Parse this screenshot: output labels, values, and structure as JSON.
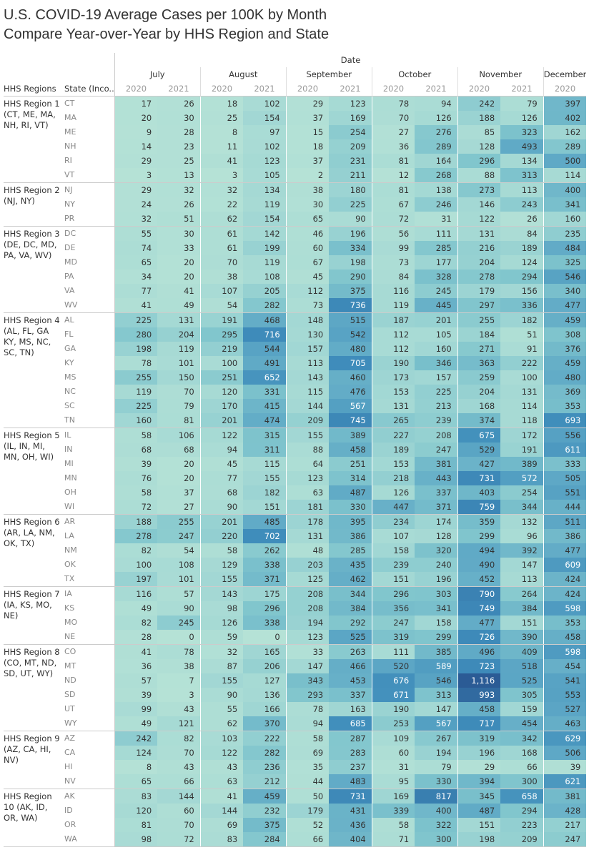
{
  "title_line1": "U.S. COVID-19 Average Cases per 100K by Month",
  "title_line2": "Compare Year-over-Year by HHS Region and State",
  "chart_data": {
    "type": "table",
    "column_group_label": "Date",
    "row_headers": [
      "HHS Regions",
      "State (Inco.."
    ],
    "months": [
      "July",
      "August",
      "September",
      "October",
      "November",
      "December"
    ],
    "columns": [
      [
        "July",
        "2020"
      ],
      [
        "July",
        "2021"
      ],
      [
        "August",
        "2020"
      ],
      [
        "August",
        "2021"
      ],
      [
        "September",
        "2020"
      ],
      [
        "September",
        "2021"
      ],
      [
        "October",
        "2020"
      ],
      [
        "October",
        "2021"
      ],
      [
        "November",
        "2020"
      ],
      [
        "November",
        "2021"
      ],
      [
        "December",
        "2020"
      ]
    ],
    "color_scale": [
      "#b5e2d6",
      "#a3d8d4",
      "#80c5cd",
      "#5fa9c6",
      "#3f8dbb",
      "#2b5b95"
    ],
    "regions": [
      {
        "name": "HHS Region 1 (CT, ME, MA, NH, RI, VT)",
        "rows": [
          [
            "CT",
            [
              17,
              26,
              18,
              102,
              29,
              123,
              78,
              94,
              242,
              79,
              397
            ]
          ],
          [
            "MA",
            [
              20,
              30,
              25,
              154,
              37,
              169,
              70,
              126,
              188,
              126,
              402
            ]
          ],
          [
            "ME",
            [
              9,
              28,
              8,
              97,
              15,
              254,
              27,
              276,
              85,
              323,
              162
            ]
          ],
          [
            "NH",
            [
              14,
              23,
              11,
              102,
              18,
              209,
              36,
              289,
              128,
              493,
              289
            ]
          ],
          [
            "RI",
            [
              29,
              25,
              41,
              123,
              37,
              231,
              81,
              164,
              296,
              134,
              500
            ]
          ],
          [
            "VT",
            [
              3,
              13,
              3,
              105,
              2,
              211,
              12,
              268,
              88,
              313,
              114
            ]
          ]
        ]
      },
      {
        "name": "HHS Region 2 (NJ, NY)",
        "rows": [
          [
            "NJ",
            [
              29,
              32,
              32,
              134,
              38,
              180,
              81,
              138,
              273,
              113,
              400
            ]
          ],
          [
            "NY",
            [
              24,
              26,
              22,
              119,
              30,
              225,
              67,
              246,
              146,
              243,
              341
            ]
          ],
          [
            "PR",
            [
              32,
              51,
              62,
              154,
              65,
              90,
              72,
              31,
              122,
              26,
              160
            ]
          ]
        ]
      },
      {
        "name": "HHS Region 3 (DE, DC, MD, PA, VA, WV)",
        "rows": [
          [
            "DC",
            [
              55,
              30,
              61,
              142,
              46,
              196,
              56,
              111,
              131,
              84,
              235
            ]
          ],
          [
            "DE",
            [
              74,
              33,
              61,
              199,
              60,
              334,
              99,
              285,
              216,
              189,
              484
            ]
          ],
          [
            "MD",
            [
              65,
              20,
              70,
              119,
              67,
              198,
              73,
              177,
              204,
              124,
              325
            ]
          ],
          [
            "PA",
            [
              34,
              20,
              38,
              108,
              45,
              290,
              84,
              328,
              278,
              294,
              546
            ]
          ],
          [
            "VA",
            [
              77,
              41,
              107,
              205,
              112,
              375,
              116,
              245,
              179,
              156,
              340
            ]
          ],
          [
            "WV",
            [
              41,
              49,
              54,
              282,
              73,
              736,
              119,
              445,
              297,
              336,
              477
            ]
          ]
        ]
      },
      {
        "name": "HHS Region 4 (AL, FL, GA KY, MS, NC, SC, TN)",
        "rows": [
          [
            "AL",
            [
              225,
              131,
              191,
              468,
              148,
              515,
              187,
              201,
              255,
              182,
              459
            ]
          ],
          [
            "FL",
            [
              280,
              204,
              295,
              716,
              130,
              542,
              112,
              105,
              184,
              51,
              308
            ]
          ],
          [
            "GA",
            [
              198,
              119,
              219,
              544,
              157,
              480,
              112,
              160,
              271,
              91,
              376
            ]
          ],
          [
            "KY",
            [
              78,
              101,
              100,
              491,
              113,
              705,
              190,
              346,
              363,
              222,
              459
            ]
          ],
          [
            "MS",
            [
              255,
              150,
              251,
              652,
              143,
              460,
              173,
              157,
              259,
              100,
              480
            ]
          ],
          [
            "NC",
            [
              119,
              70,
              120,
              331,
              115,
              476,
              153,
              225,
              204,
              131,
              369
            ]
          ],
          [
            "SC",
            [
              225,
              79,
              170,
              415,
              144,
              567,
              131,
              213,
              168,
              114,
              353
            ]
          ],
          [
            "TN",
            [
              160,
              81,
              201,
              474,
              209,
              745,
              265,
              239,
              374,
              118,
              693
            ]
          ]
        ]
      },
      {
        "name": "HHS Region 5 (IL, IN, MI, MN, OH, WI)",
        "rows": [
          [
            "IL",
            [
              58,
              106,
              122,
              315,
              155,
              389,
              227,
              208,
              675,
              172,
              556
            ]
          ],
          [
            "IN",
            [
              68,
              68,
              94,
              311,
              88,
              458,
              189,
              247,
              529,
              191,
              611
            ]
          ],
          [
            "MI",
            [
              39,
              20,
              45,
              115,
              64,
              251,
              153,
              381,
              427,
              389,
              333
            ]
          ],
          [
            "MN",
            [
              76,
              20,
              77,
              155,
              123,
              314,
              218,
              443,
              731,
              572,
              505
            ]
          ],
          [
            "OH",
            [
              58,
              37,
              68,
              182,
              63,
              487,
              126,
              337,
              403,
              254,
              551
            ]
          ],
          [
            "WI",
            [
              72,
              27,
              90,
              151,
              181,
              330,
              447,
              371,
              759,
              344,
              444
            ]
          ]
        ]
      },
      {
        "name": "HHS Region 6 (AR, LA, NM, OK, TX)",
        "rows": [
          [
            "AR",
            [
              188,
              255,
              201,
              485,
              178,
              395,
              234,
              174,
              359,
              132,
              511
            ]
          ],
          [
            "LA",
            [
              278,
              247,
              220,
              702,
              131,
              386,
              107,
              128,
              299,
              96,
              386
            ]
          ],
          [
            "NM",
            [
              82,
              54,
              58,
              262,
              48,
              285,
              158,
              320,
              494,
              392,
              477
            ]
          ],
          [
            "OK",
            [
              100,
              108,
              129,
              338,
              203,
              435,
              239,
              240,
              490,
              147,
              609
            ]
          ],
          [
            "TX",
            [
              197,
              101,
              155,
              371,
              125,
              462,
              151,
              196,
              452,
              113,
              424
            ]
          ]
        ]
      },
      {
        "name": "HHS Region 7 (IA, KS, MO, NE)",
        "rows": [
          [
            "IA",
            [
              116,
              57,
              143,
              175,
              208,
              344,
              296,
              303,
              790,
              264,
              424
            ]
          ],
          [
            "KS",
            [
              49,
              90,
              98,
              296,
              208,
              384,
              356,
              341,
              749,
              384,
              598
            ]
          ],
          [
            "MO",
            [
              82,
              245,
              126,
              338,
              194,
              292,
              247,
              158,
              477,
              151,
              353
            ]
          ],
          [
            "NE",
            [
              28,
              0,
              59,
              0,
              123,
              525,
              319,
              299,
              726,
              390,
              458
            ]
          ]
        ]
      },
      {
        "name": "HHS Region 8 (CO, MT, ND, SD, UT, WY)",
        "rows": [
          [
            "CO",
            [
              41,
              78,
              32,
              165,
              33,
              263,
              111,
              385,
              496,
              409,
              598
            ]
          ],
          [
            "MT",
            [
              36,
              38,
              87,
              206,
              147,
              466,
              520,
              589,
              723,
              518,
              454
            ]
          ],
          [
            "ND",
            [
              57,
              7,
              155,
              127,
              343,
              453,
              676,
              546,
              1116,
              525,
              541
            ]
          ],
          [
            "SD",
            [
              39,
              3,
              90,
              136,
              293,
              337,
              671,
              313,
              993,
              305,
              553
            ]
          ],
          [
            "UT",
            [
              99,
              43,
              55,
              166,
              78,
              163,
              190,
              147,
              458,
              159,
              527
            ]
          ],
          [
            "WY",
            [
              49,
              121,
              62,
              370,
              94,
              685,
              253,
              567,
              717,
              454,
              463
            ]
          ]
        ]
      },
      {
        "name": "HHS Region 9 (AZ, CA, HI, NV)",
        "rows": [
          [
            "AZ",
            [
              242,
              82,
              103,
              222,
              58,
              287,
              109,
              267,
              319,
              342,
              629
            ]
          ],
          [
            "CA",
            [
              124,
              70,
              122,
              282,
              69,
              283,
              60,
              194,
              196,
              168,
              506
            ]
          ],
          [
            "HI",
            [
              8,
              43,
              43,
              236,
              35,
              237,
              31,
              79,
              29,
              66,
              39
            ]
          ],
          [
            "NV",
            [
              65,
              66,
              63,
              212,
              44,
              483,
              95,
              330,
              394,
              300,
              621
            ]
          ]
        ]
      },
      {
        "name": "HHS Region 10 (AK, ID, OR, WA)",
        "rows": [
          [
            "AK",
            [
              83,
              144,
              41,
              459,
              50,
              731,
              169,
              817,
              345,
              658,
              381
            ]
          ],
          [
            "ID",
            [
              120,
              60,
              144,
              232,
              179,
              431,
              339,
              400,
              487,
              294,
              428
            ]
          ],
          [
            "OR",
            [
              81,
              70,
              69,
              375,
              52,
              436,
              58,
              322,
              151,
              223,
              217
            ]
          ],
          [
            "WA",
            [
              98,
              72,
              83,
              284,
              66,
              404,
              71,
              300,
              198,
              209,
              247
            ]
          ]
        ]
      }
    ]
  }
}
